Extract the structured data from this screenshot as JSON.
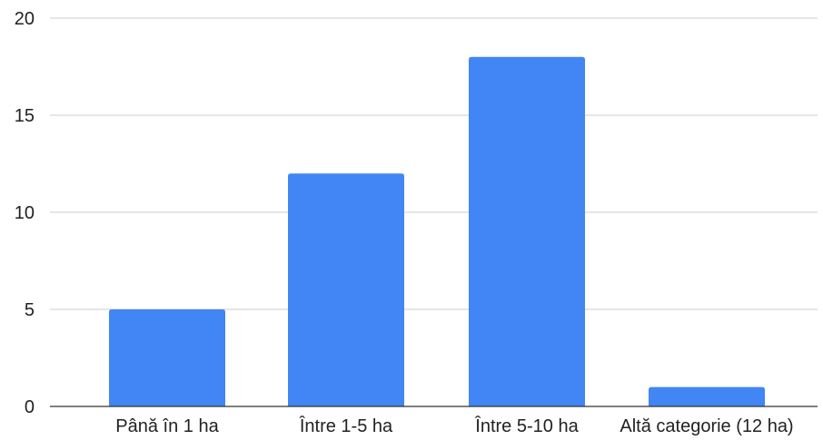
{
  "chart_data": {
    "type": "bar",
    "categories": [
      "Până în 1 ha",
      "Între 1-5 ha",
      "Între 5-10 ha",
      "Altă categorie (12 ha)"
    ],
    "values": [
      5,
      12,
      18,
      1
    ],
    "title": "",
    "xlabel": "",
    "ylabel": "",
    "ylim": [
      0,
      20
    ],
    "yticks": [
      0,
      5,
      10,
      15,
      20
    ],
    "grid": true,
    "legend": "none",
    "bar_color": "#4285f4"
  }
}
